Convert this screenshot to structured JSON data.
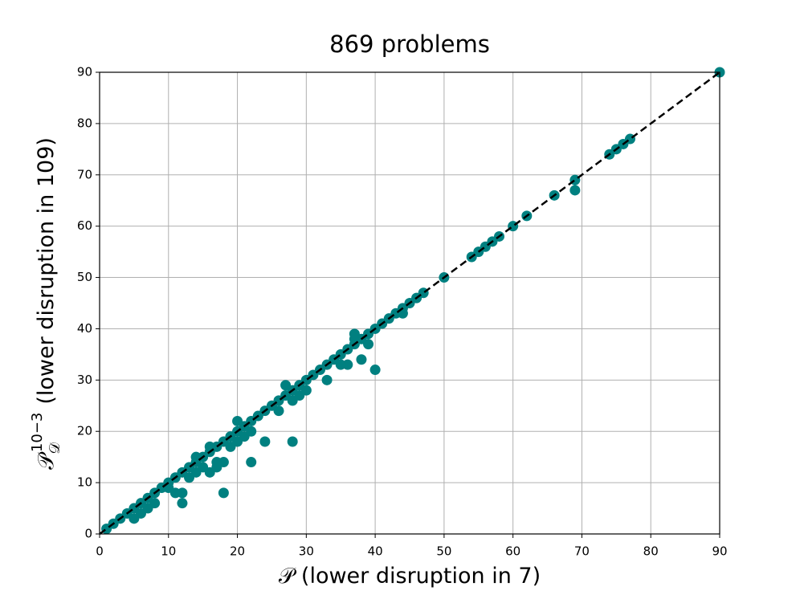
{
  "chart_data": {
    "type": "scatter",
    "title": "869 problems",
    "xlabel": "𝒫 (lower disruption in 7)",
    "ylabel": {
      "symbol": "𝒫",
      "subscript": "𝒟",
      "superscript": "10−3",
      "text": "(lower disruption in 109)"
    },
    "x": [
      1,
      2,
      3,
      4,
      5,
      6,
      7,
      8,
      9,
      10,
      11,
      12,
      13,
      14,
      15,
      16,
      17,
      18,
      19,
      20,
      21,
      22,
      23,
      24,
      25,
      26,
      27,
      28,
      29,
      30,
      31,
      32,
      33,
      34,
      35,
      36,
      37,
      38,
      39,
      40,
      41,
      42,
      43,
      44,
      45,
      46,
      47,
      50,
      54,
      55,
      56,
      57,
      58,
      60,
      62,
      66,
      69,
      74,
      75,
      76,
      77,
      90,
      5,
      6,
      7,
      8,
      10,
      11,
      12,
      12,
      13,
      14,
      14,
      15,
      16,
      16,
      17,
      17,
      18,
      18,
      19,
      20,
      20,
      21,
      22,
      22,
      24,
      26,
      27,
      28,
      28,
      29,
      30,
      33,
      35,
      36,
      37,
      38,
      39,
      40,
      44,
      69,
      37
    ],
    "y": [
      1,
      2,
      3,
      4,
      5,
      6,
      7,
      8,
      9,
      10,
      11,
      12,
      13,
      14,
      15,
      16,
      17,
      18,
      19,
      20,
      21,
      22,
      23,
      24,
      25,
      26,
      27,
      28,
      29,
      30,
      31,
      32,
      33,
      34,
      35,
      36,
      37,
      38,
      39,
      40,
      41,
      42,
      43,
      44,
      45,
      46,
      47,
      50,
      54,
      55,
      56,
      57,
      58,
      60,
      62,
      66,
      69,
      74,
      75,
      76,
      77,
      90,
      3,
      4,
      5,
      6,
      9,
      8,
      6,
      8,
      11,
      12,
      15,
      13,
      12,
      17,
      13,
      14,
      8,
      14,
      17,
      22,
      18,
      19,
      14,
      20,
      18,
      24,
      29,
      18,
      26,
      27,
      28,
      30,
      33,
      33,
      39,
      34,
      37,
      32,
      43,
      67,
      38
    ],
    "color": "#008080",
    "reference_line": {
      "x": [
        0,
        90
      ],
      "y": [
        0,
        90
      ],
      "color": "#000000"
    },
    "xlim": [
      0,
      90
    ],
    "ylim": [
      0,
      90
    ],
    "xticks": [
      0,
      10,
      20,
      30,
      40,
      50,
      60,
      70,
      80,
      90
    ],
    "yticks": [
      0,
      10,
      20,
      30,
      40,
      50,
      60,
      70,
      80,
      90
    ],
    "grid": true
  }
}
